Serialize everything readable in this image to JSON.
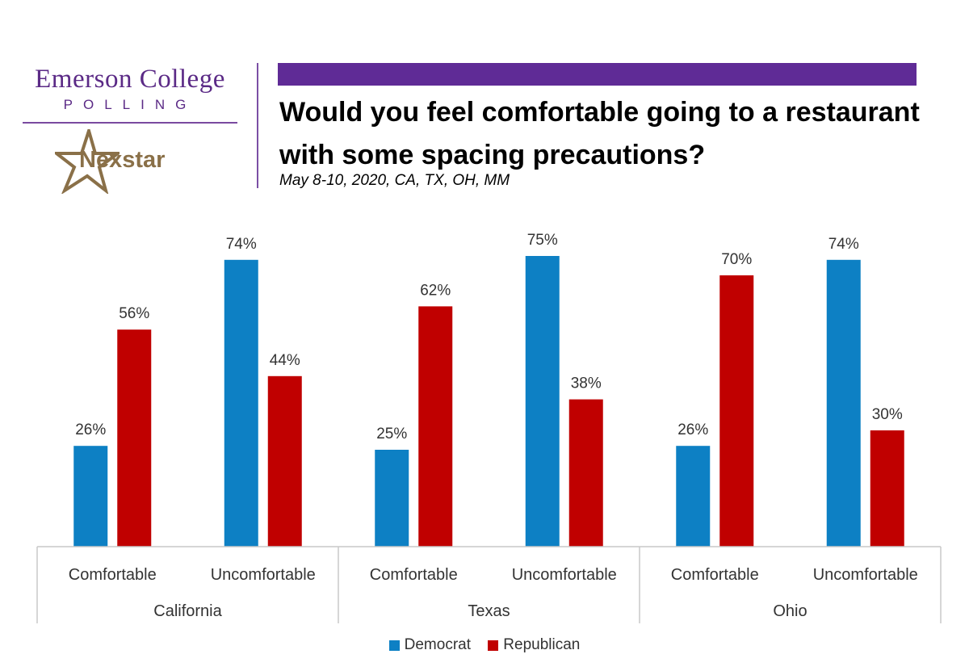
{
  "logo": {
    "emerson": "Emerson College",
    "polling": "POLLING",
    "nexstar": "Nexstar"
  },
  "header": {
    "title": "Would you feel comfortable going to a restaurant with some spacing precautions?",
    "subtitle": "May 8-10, 2020, CA, TX, OH, MM"
  },
  "colors": {
    "accent_purple": "#5f2b96",
    "democrat": "#0d80c4",
    "republican": "#c00000"
  },
  "chart_data": {
    "type": "bar",
    "groups": [
      "California",
      "Texas",
      "Ohio"
    ],
    "categories": [
      "Comfortable",
      "Uncomfortable",
      "Comfortable",
      "Uncomfortable",
      "Comfortable",
      "Uncomfortable"
    ],
    "series": [
      {
        "name": "Democrat",
        "color": "#0d80c4",
        "values": [
          26,
          74,
          25,
          75,
          26,
          74
        ]
      },
      {
        "name": "Republican",
        "color": "#c00000",
        "values": [
          56,
          44,
          62,
          38,
          70,
          30
        ]
      }
    ],
    "value_labels": {
      "Democrat": [
        "26%",
        "74%",
        "25%",
        "75%",
        "26%",
        "74%"
      ],
      "Republican": [
        "56%",
        "44%",
        "62%",
        "38%",
        "70%",
        "30%"
      ]
    },
    "ylim": [
      0,
      100
    ],
    "grid": false,
    "legend": "bottom-center"
  }
}
